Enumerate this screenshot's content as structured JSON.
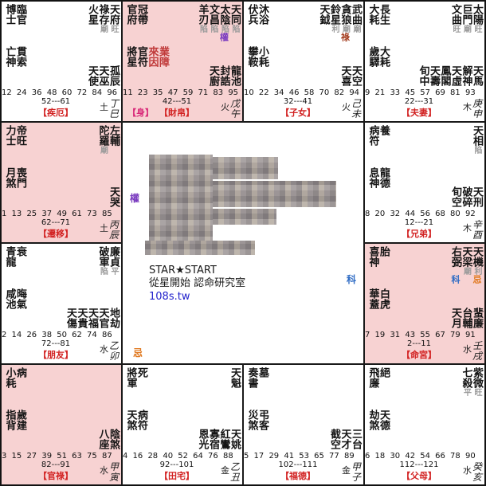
{
  "colors": {
    "pink_bg": "#f7d2d2",
    "palace_label_red": "#d22222",
    "body_label_magenta": "#d82878",
    "hua_lu": "#a33c1e",
    "hua_quan": "#7a3bbf",
    "hua_ke": "#2e6bc4",
    "hua_ji": "#e0781e",
    "brightness_gray": "#9a9a9a",
    "red_star": "#c03a3a",
    "link_blue": "#2222cc"
  },
  "hua_chars": {
    "lu": "祿",
    "quan": "權",
    "ke": "科",
    "ji": "忌"
  },
  "center": {
    "brand_en": "STAR★START",
    "brand_zh": "從星開始 認命研究室",
    "link": "108s.tw",
    "markers": {
      "quan": "權",
      "ke": "科",
      "ji": "忌"
    }
  },
  "palaces": [
    {
      "pink": false,
      "gods": [
        "博士",
        "臨官"
      ],
      "ys": [
        {
          "n": "亡神"
        },
        {
          "n": "貫索"
        }
      ],
      "stars": [
        {
          "n": "火星"
        },
        {
          "n": "祿存",
          "b": "廟"
        },
        {
          "n": "天府",
          "b": "旺"
        }
      ],
      "minor": [
        "天使",
        "天巫",
        "孤辰"
      ],
      "ages": "12 24 36 48 60 72 84 96",
      "range": "52---61",
      "label": "【疾厄】",
      "elem": "土",
      "sb": [
        "丁",
        "巳"
      ]
    },
    {
      "pink": true,
      "gods": [
        "官府",
        "冠帶"
      ],
      "ys": [
        {
          "n": "將星"
        },
        {
          "n": "官符"
        },
        {
          "n": "來因",
          "red": true
        },
        {
          "n": "業障",
          "red": true
        }
      ],
      "stars": [
        {
          "n": "羊刃",
          "b": "陷"
        },
        {
          "n": "文昌",
          "b": "陷"
        },
        {
          "n": "太陰",
          "b": "陷",
          "h": "quan"
        },
        {
          "n": "天同",
          "b": "陷"
        }
      ],
      "minor": [
        "天廚",
        "封誥",
        "龍池"
      ],
      "ages": "11 23 35 47 59 71 83 95",
      "range": "42---51",
      "label": "【財帛】",
      "body_label": "【身】",
      "elem": "火",
      "sb": [
        "戊",
        "午"
      ]
    },
    {
      "pink": false,
      "gods": [
        "伏兵",
        "沐浴"
      ],
      "ys": [
        {
          "n": "攀鞍"
        },
        {
          "n": "小耗"
        }
      ],
      "stars": [
        {
          "n": "天鉞"
        },
        {
          "n": "鈴星",
          "b": "利"
        },
        {
          "n": "貪狼",
          "b": "廟",
          "h": "lu"
        },
        {
          "n": "武曲",
          "b": "廟"
        }
      ],
      "minor": [
        "天喜",
        "天空"
      ],
      "ages": "10 22 34 46 58 70 82 94",
      "range": "32---41",
      "label": "【子女】",
      "elem": "火",
      "sb": [
        "己",
        "未"
      ]
    },
    {
      "pink": false,
      "gods": [
        "大耗",
        "長生"
      ],
      "ys": [
        {
          "n": "歲驛"
        },
        {
          "n": "大耗"
        }
      ],
      "stars": [
        {
          "n": "文曲",
          "b": "旺"
        },
        {
          "n": "巨門",
          "b": "廟"
        },
        {
          "n": "太陽",
          "b": "旺"
        }
      ],
      "minor": [
        "旬中",
        "天壽",
        "鳳閣",
        "天虛",
        "解神",
        "天馬"
      ],
      "ages": "9 21 33 45 57 69 81 93",
      "range": "22---31",
      "label": "【夫妻】",
      "elem": "木",
      "sb": [
        "庚",
        "申"
      ]
    },
    {
      "pink": true,
      "gods": [
        "力士",
        "帝旺"
      ],
      "ys": [
        {
          "n": "月煞"
        },
        {
          "n": "喪門"
        }
      ],
      "stars": [
        {
          "n": "陀羅",
          "b": "廟"
        },
        {
          "n": "左輔"
        }
      ],
      "minor": [
        "天哭"
      ],
      "ages": "1 13 25 37 49 61 73 85",
      "range": "62---71",
      "label": "【遷移】",
      "elem": "土",
      "sb": [
        "丙",
        "辰"
      ]
    },
    {
      "pink": false,
      "gods": [
        "病符",
        "養"
      ],
      "ys": [
        {
          "n": "息神"
        },
        {
          "n": "龍德"
        }
      ],
      "stars": [
        {
          "n": "天相",
          "b": "陷"
        }
      ],
      "minor": [
        "旬空",
        "破碎",
        "天刑"
      ],
      "ages": "8 20 32 44 56 68 80 92",
      "range": "12---21",
      "label": "【兄弟】",
      "elem": "木",
      "sb": [
        "辛",
        "酉"
      ]
    },
    {
      "pink": false,
      "gods": [
        "青龍",
        "衰"
      ],
      "ys": [
        {
          "n": "咸池"
        },
        {
          "n": "晦氣"
        }
      ],
      "stars": [
        {
          "n": "破軍",
          "b": "陷"
        },
        {
          "n": "廉貞",
          "b": "平"
        }
      ],
      "minor": [
        "天傷",
        "天貴",
        "天福",
        "天官",
        "地劫"
      ],
      "ages": "2 14 26 38 50 62 74 86",
      "range": "72---81",
      "label": "【朋友】",
      "elem": "水",
      "sb": [
        "乙",
        "卯"
      ]
    },
    {
      "pink": true,
      "gods": [
        "喜神",
        "胎"
      ],
      "ys": [
        {
          "n": "華蓋"
        },
        {
          "n": "白虎"
        }
      ],
      "stars": [
        {
          "n": "右弼",
          "h": "ke"
        },
        {
          "n": "天梁",
          "b": "廟"
        },
        {
          "n": "天機",
          "b": "利",
          "h": "ji"
        }
      ],
      "minor": [
        "天月",
        "台輔",
        "蜚廉"
      ],
      "ages": "7 19 31 43 55 67 79 91",
      "range": "2---11",
      "label": "【命宮】",
      "elem": "水",
      "sb": [
        "壬",
        "戌"
      ]
    },
    {
      "pink": true,
      "gods": [
        "小耗",
        "病"
      ],
      "ys": [
        {
          "n": "指背"
        },
        {
          "n": "歲建"
        }
      ],
      "stars": [],
      "minor": [
        "八座",
        "陰煞"
      ],
      "ages": "3 15 27 39 51 63 75 87",
      "range": "82---91",
      "label": "【官祿】",
      "elem": "水",
      "sb": [
        "甲",
        "寅"
      ]
    },
    {
      "pink": false,
      "gods": [
        "將軍",
        "死"
      ],
      "ys": [
        {
          "n": "天煞"
        },
        {
          "n": "病符"
        }
      ],
      "stars": [
        {
          "n": "天魁"
        }
      ],
      "minor": [
        "恩光",
        "寡宿",
        "紅鸞",
        "天姚"
      ],
      "ages": "4 16 28 40 52 64 76 88",
      "range": "92---101",
      "label": "【田宅】",
      "elem": "金",
      "sb": [
        "乙",
        "丑"
      ]
    },
    {
      "pink": false,
      "gods": [
        "奏書",
        "墓"
      ],
      "ys": [
        {
          "n": "災煞"
        },
        {
          "n": "弔客"
        }
      ],
      "stars": [],
      "minor": [
        "截空",
        "天才",
        "三台"
      ],
      "ages": "5 17 29 41 53 65 77 89",
      "range": "102---111",
      "label": "【福德】",
      "elem": "金",
      "sb": [
        "甲",
        "子"
      ]
    },
    {
      "pink": false,
      "gods": [
        "飛廉",
        "絕"
      ],
      "ys": [
        {
          "n": "劫煞"
        },
        {
          "n": "天德"
        }
      ],
      "stars": [
        {
          "n": "七殺",
          "b": "平"
        },
        {
          "n": "紫微",
          "b": "旺"
        }
      ],
      "minor": [],
      "ages": "6 18 30 42 54 66 78 90",
      "range": "112---121",
      "label": "【父母】",
      "elem": "水",
      "sb": [
        "癸",
        "亥"
      ]
    }
  ]
}
